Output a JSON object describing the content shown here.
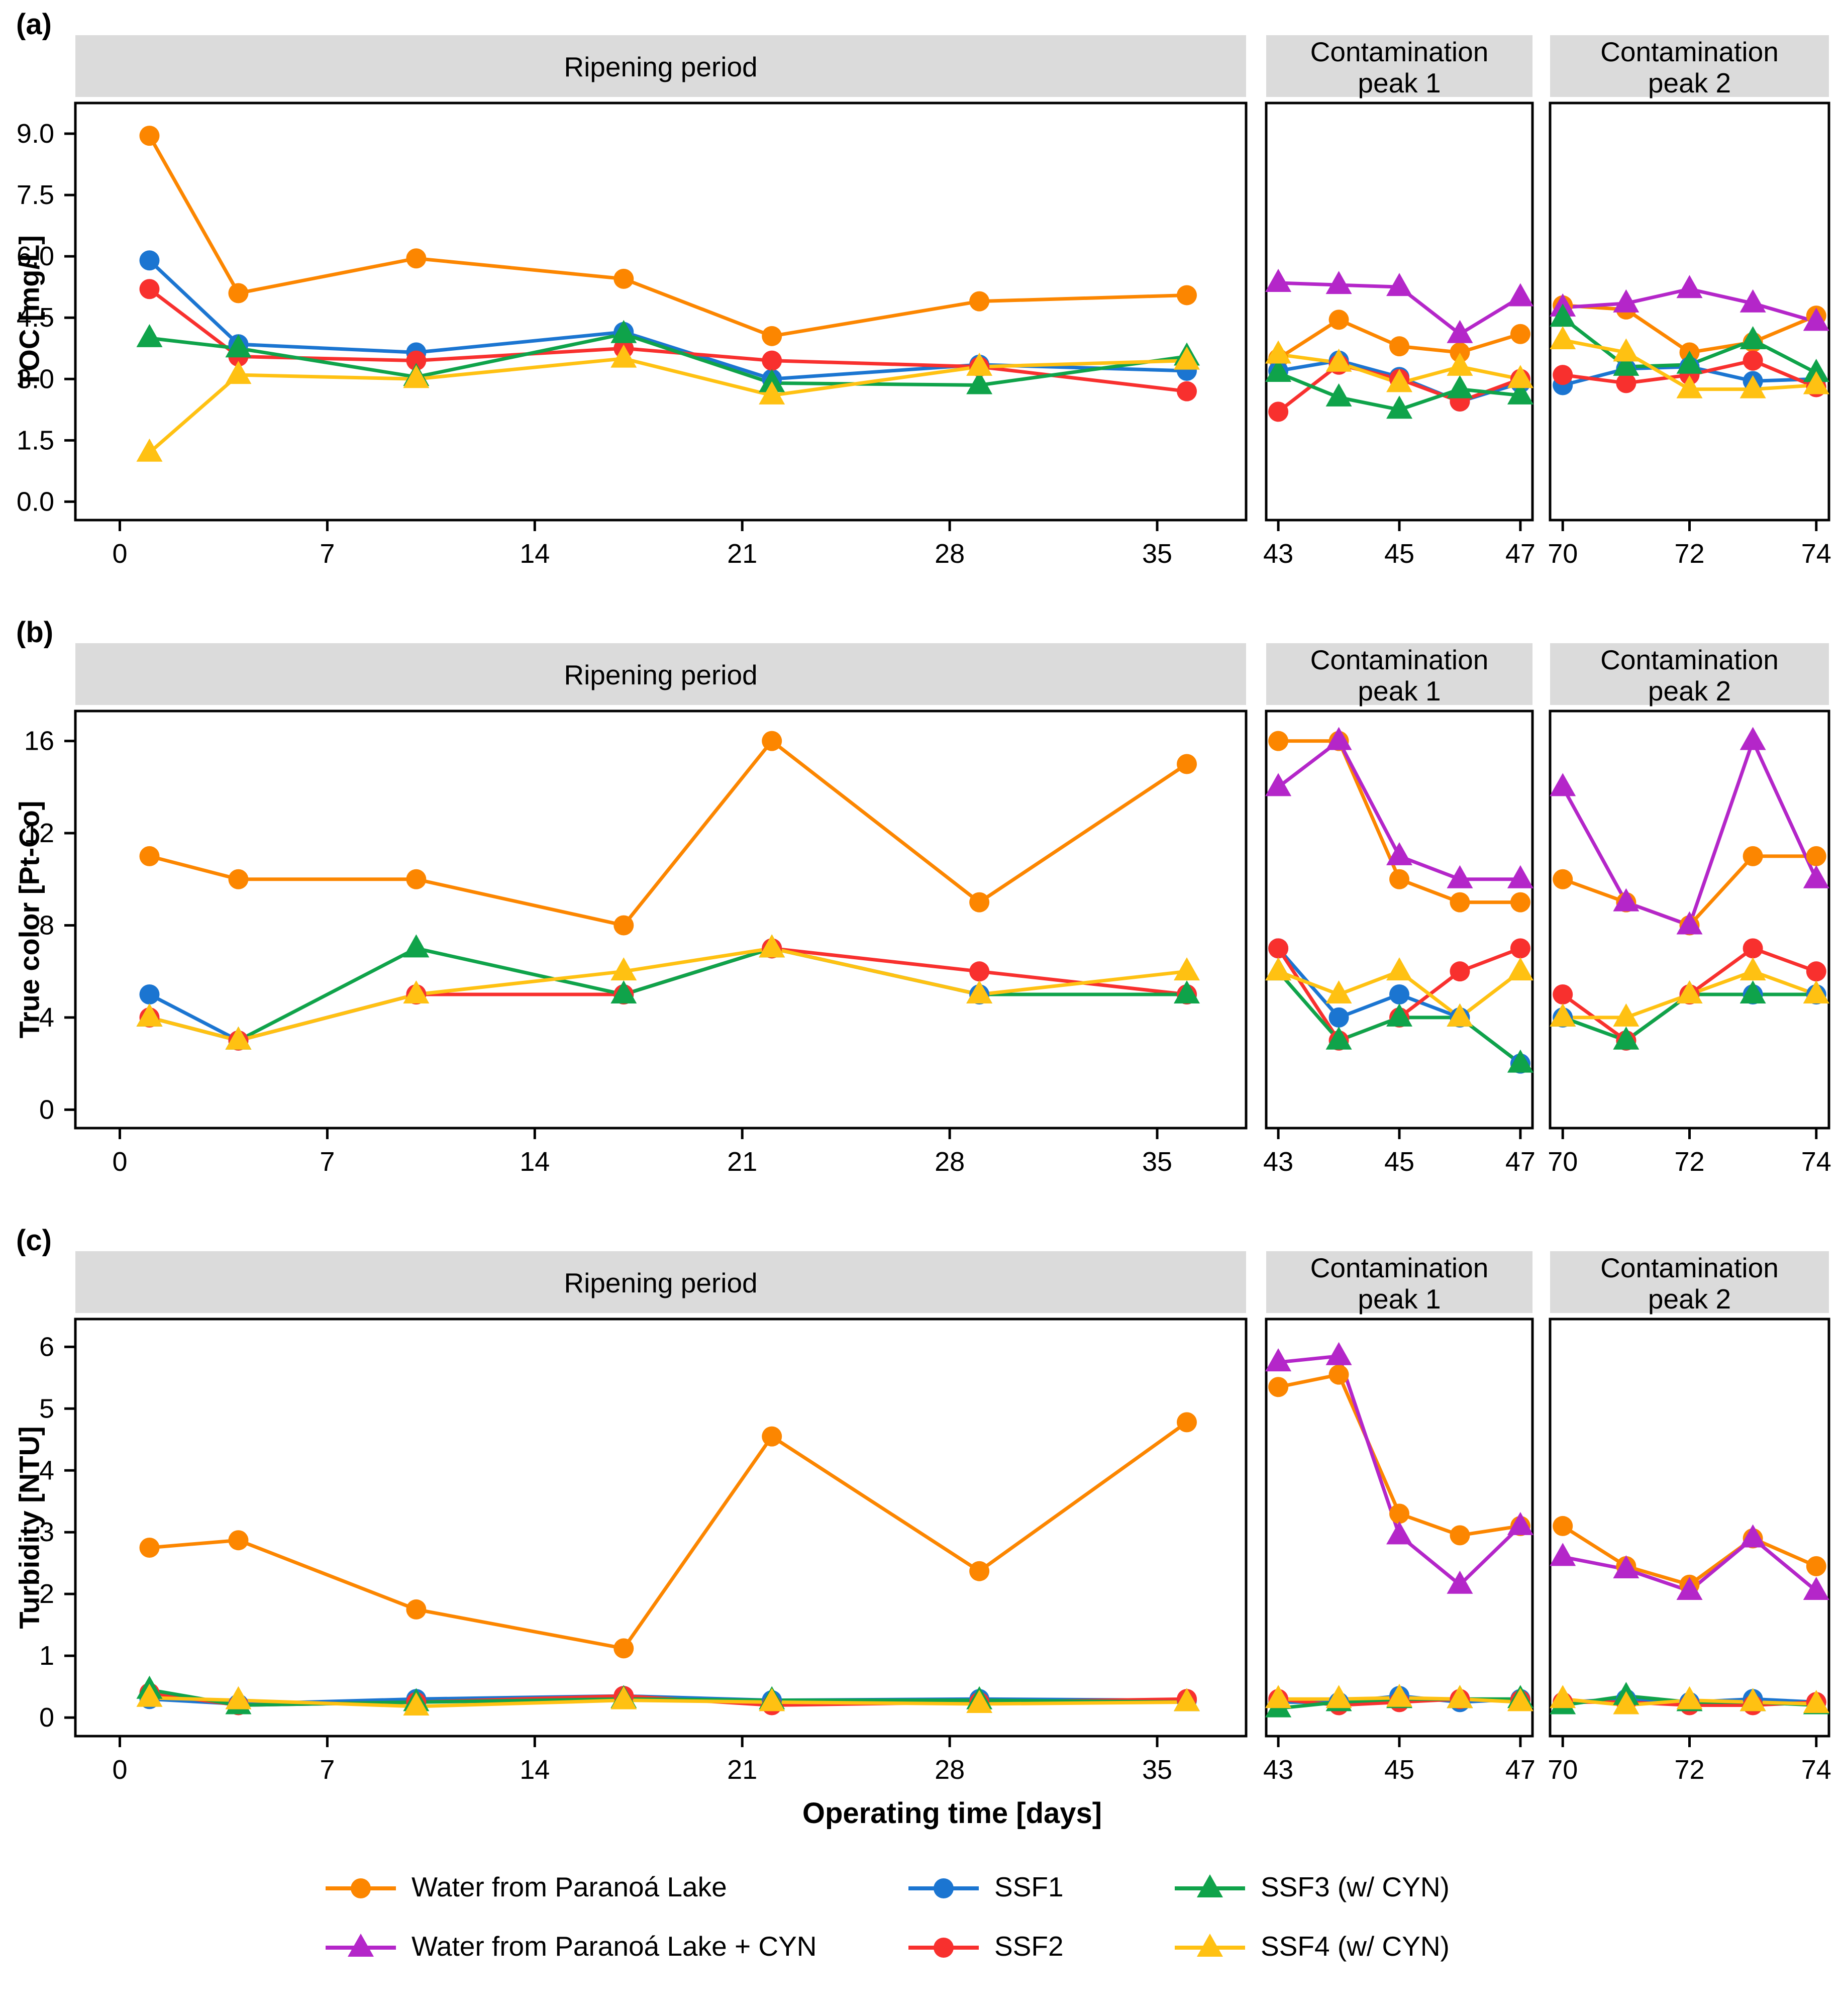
{
  "x_axis_title": "Operating time [days]",
  "panel_letters": [
    "(a)",
    "(b)",
    "(c)"
  ],
  "strip_color": "#DBDBDB",
  "chart_data": {
    "type": "line",
    "xlabel": "Operating time [days]",
    "legend_position": "bottom",
    "grid": false,
    "series_meta": [
      {
        "name": "Water from Paranoá Lake",
        "color": "#FC8600",
        "marker": "circle"
      },
      {
        "name": "Water from Paranoá Lake + CYN",
        "color": "#B426C9",
        "marker": "triangle"
      },
      {
        "name": "SSF1",
        "color": "#1B75D1",
        "marker": "circle"
      },
      {
        "name": "SSF2",
        "color": "#F8302E",
        "marker": "circle"
      },
      {
        "name": "SSF3 (w/ CYN)",
        "color": "#0FA34A",
        "marker": "triangle"
      },
      {
        "name": "SSF4 (w/ CYN)",
        "color": "#FFC112",
        "marker": "triangle"
      }
    ],
    "legend_rows": [
      [
        0,
        2,
        4
      ],
      [
        1,
        3,
        5
      ]
    ],
    "panels": [
      {
        "letter": "(a)",
        "ylabel": "TOC [mg/L]",
        "ylim": [
          -0.45,
          9.75
        ],
        "yticks": [
          0,
          1.5,
          3,
          4.5,
          6,
          7.5,
          9
        ],
        "ytick_labels": [
          "0.0",
          "1.5",
          "3.0",
          "4.5",
          "6.0",
          "7.5",
          "9.0"
        ],
        "subpanels": [
          {
            "title": "Ripening period",
            "xlim": [
              -1.5,
              38
            ],
            "xticks": [
              0,
              7,
              14,
              21,
              28,
              35
            ],
            "xtick_labels": [
              "0",
              "7",
              "14",
              "21",
              "28",
              "35"
            ],
            "x": [
              1,
              4,
              10,
              17,
              22,
              29,
              36
            ],
            "values": [
              [
                8.95,
                5.1,
                5.95,
                5.45,
                4.05,
                4.9,
                5.05
              ],
              null,
              [
                5.9,
                3.85,
                3.65,
                4.15,
                3.0,
                3.35,
                3.2
              ],
              [
                5.2,
                3.55,
                3.45,
                3.75,
                3.45,
                3.3,
                2.7
              ],
              [
                4.0,
                3.75,
                3.05,
                4.1,
                2.9,
                2.85,
                3.55
              ],
              [
                1.2,
                3.1,
                3.0,
                3.5,
                2.6,
                3.3,
                3.45
              ]
            ]
          },
          {
            "title": "Contamination\npeak 1",
            "xlim": [
              42.8,
              47.2
            ],
            "xticks": [
              43,
              45,
              47
            ],
            "xtick_labels": [
              "43",
              "45",
              "47"
            ],
            "x": [
              43,
              44,
              45,
              46,
              47
            ],
            "values": [
              [
                3.5,
                4.45,
                3.8,
                3.65,
                4.1
              ],
              [
                5.35,
                5.3,
                5.25,
                4.1,
                5.0
              ],
              [
                3.2,
                3.45,
                3.05,
                2.45,
                2.9
              ],
              [
                2.2,
                3.35,
                3.0,
                2.45,
                3.0
              ],
              [
                3.15,
                2.55,
                2.25,
                2.75,
                2.6
              ],
              [
                3.6,
                3.4,
                2.9,
                3.3,
                3.0
              ]
            ]
          },
          {
            "title": "Contamination\npeak 2",
            "xlim": [
              69.8,
              74.2
            ],
            "xticks": [
              70,
              72,
              74
            ],
            "xtick_labels": [
              "70",
              "72",
              "74"
            ],
            "x": [
              70,
              71,
              72,
              73,
              74
            ],
            "values": [
              [
                4.8,
                4.7,
                3.65,
                3.9,
                4.55
              ],
              [
                4.75,
                4.85,
                5.2,
                4.85,
                4.4
              ],
              [
                2.85,
                3.25,
                3.3,
                2.95,
                3.0
              ],
              [
                3.1,
                2.9,
                3.1,
                3.45,
                2.8
              ],
              [
                4.5,
                3.3,
                3.35,
                3.95,
                3.15
              ],
              [
                3.95,
                3.65,
                2.75,
                2.75,
                2.85
              ]
            ]
          }
        ]
      },
      {
        "letter": "(b)",
        "ylabel": "True color [Pt-Co]",
        "ylim": [
          -0.8,
          17.3
        ],
        "yticks": [
          0,
          4,
          8,
          12,
          16
        ],
        "ytick_labels": [
          "0",
          "4",
          "8",
          "12",
          "16"
        ],
        "subpanels": [
          {
            "title": "Ripening period",
            "xlim": [
              -1.5,
              38
            ],
            "xticks": [
              0,
              7,
              14,
              21,
              28,
              35
            ],
            "xtick_labels": [
              "0",
              "7",
              "14",
              "21",
              "28",
              "35"
            ],
            "x": [
              1,
              4,
              10,
              17,
              22,
              29,
              36
            ],
            "values": [
              [
                11,
                10,
                10,
                8,
                16,
                9,
                15
              ],
              null,
              [
                5,
                3,
                5,
                5,
                7,
                5,
                5
              ],
              [
                4,
                3,
                5,
                5,
                7,
                6,
                5
              ],
              [
                4,
                3,
                7,
                5,
                7,
                5,
                5
              ],
              [
                4,
                3,
                5,
                6,
                7,
                5,
                6
              ]
            ]
          },
          {
            "title": "Contamination\npeak 1",
            "xlim": [
              42.8,
              47.2
            ],
            "xticks": [
              43,
              45,
              47
            ],
            "xtick_labels": [
              "43",
              "45",
              "47"
            ],
            "x": [
              43,
              44,
              45,
              46,
              47
            ],
            "values": [
              [
                16,
                16,
                10,
                9,
                9
              ],
              [
                14,
                16,
                11,
                10,
                10
              ],
              [
                7,
                4,
                5,
                4,
                2
              ],
              [
                7,
                3,
                4,
                6,
                7
              ],
              [
                6,
                3,
                4,
                4,
                2
              ],
              [
                6,
                5,
                6,
                4,
                6
              ]
            ]
          },
          {
            "title": "Contamination\npeak 2",
            "xlim": [
              69.8,
              74.2
            ],
            "xticks": [
              70,
              72,
              74
            ],
            "xtick_labels": [
              "70",
              "72",
              "74"
            ],
            "x": [
              70,
              71,
              72,
              73,
              74
            ],
            "values": [
              [
                10,
                9,
                8,
                11,
                11
              ],
              [
                14,
                9,
                8,
                16,
                10
              ],
              [
                4,
                3,
                5,
                5,
                5
              ],
              [
                5,
                3,
                5,
                7,
                6
              ],
              [
                4,
                3,
                5,
                5,
                5
              ],
              [
                4,
                4,
                5,
                6,
                5
              ]
            ]
          }
        ]
      },
      {
        "letter": "(c)",
        "ylabel": "Turbidity [NTU]",
        "ylim": [
          -0.3,
          6.45
        ],
        "yticks": [
          0,
          1,
          2,
          3,
          4,
          5,
          6
        ],
        "ytick_labels": [
          "0",
          "1",
          "2",
          "3",
          "4",
          "5",
          "6"
        ],
        "subpanels": [
          {
            "title": "Ripening period",
            "xlim": [
              -1.5,
              38
            ],
            "xticks": [
              0,
              7,
              14,
              21,
              28,
              35
            ],
            "xtick_labels": [
              "0",
              "7",
              "14",
              "21",
              "28",
              "35"
            ],
            "x": [
              1,
              4,
              10,
              17,
              22,
              29,
              36
            ],
            "values": [
              [
                2.75,
                2.87,
                1.75,
                1.12,
                4.55,
                2.37,
                4.78
              ],
              null,
              [
                0.3,
                0.22,
                0.3,
                0.35,
                0.28,
                0.3,
                0.28
              ],
              [
                0.4,
                0.2,
                0.25,
                0.35,
                0.2,
                0.25,
                0.3
              ],
              [
                0.45,
                0.2,
                0.25,
                0.3,
                0.28,
                0.28,
                0.25
              ],
              [
                0.32,
                0.28,
                0.18,
                0.28,
                0.25,
                0.22,
                0.25
              ]
            ]
          },
          {
            "title": "Contamination\npeak 1",
            "xlim": [
              42.8,
              47.2
            ],
            "xticks": [
              43,
              45,
              47
            ],
            "xtick_labels": [
              "43",
              "45",
              "47"
            ],
            "x": [
              43,
              44,
              45,
              46,
              47
            ],
            "values": [
              [
                5.35,
                5.55,
                3.3,
                2.95,
                3.1
              ],
              [
                5.75,
                5.85,
                2.95,
                2.15,
                3.1
              ],
              [
                0.25,
                0.25,
                0.35,
                0.25,
                0.3
              ],
              [
                0.3,
                0.2,
                0.25,
                0.3,
                0.28
              ],
              [
                0.15,
                0.25,
                0.3,
                0.3,
                0.3
              ],
              [
                0.3,
                0.3,
                0.32,
                0.3,
                0.25
              ]
            ]
          },
          {
            "title": "Contamination\npeak 2",
            "xlim": [
              69.8,
              74.2
            ],
            "xticks": [
              70,
              72,
              74
            ],
            "xtick_labels": [
              "70",
              "72",
              "74"
            ],
            "x": [
              70,
              71,
              72,
              73,
              74
            ],
            "values": [
              [
                3.1,
                2.45,
                2.15,
                2.9,
                2.45
              ],
              [
                2.6,
                2.4,
                2.05,
                2.9,
                2.05
              ],
              [
                0.25,
                0.3,
                0.25,
                0.3,
                0.25
              ],
              [
                0.25,
                0.25,
                0.2,
                0.2,
                0.25
              ],
              [
                0.2,
                0.35,
                0.25,
                0.25,
                0.2
              ],
              [
                0.3,
                0.2,
                0.28,
                0.25,
                0.22
              ]
            ]
          }
        ]
      }
    ]
  }
}
